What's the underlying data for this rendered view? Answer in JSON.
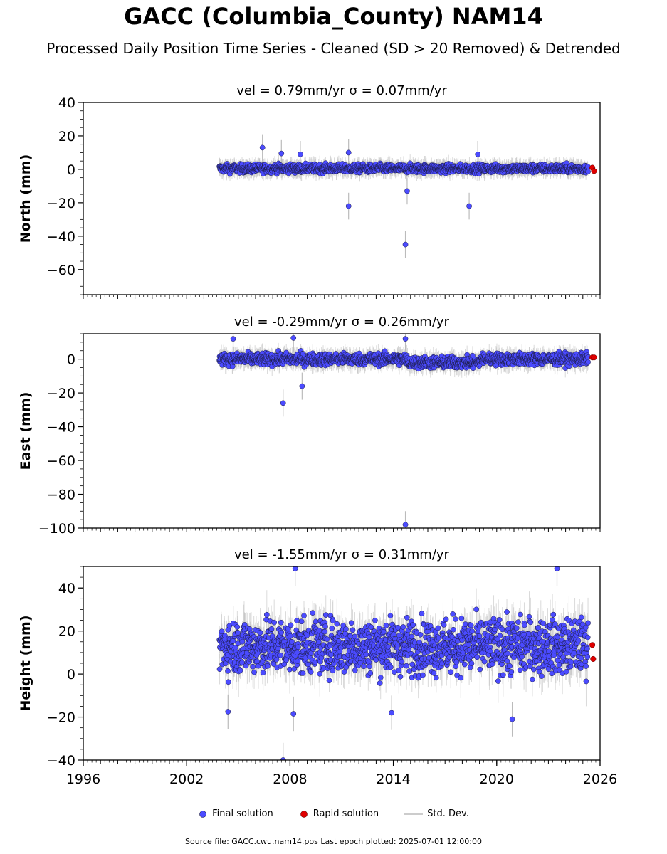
{
  "title": "GACC (Columbia_County) NAM14",
  "subtitle": "Processed Daily Position Time Series - Cleaned (SD > 20 Removed) & Detrended",
  "legend": {
    "final": "Final solution",
    "rapid": "Rapid solution",
    "std": "Std. Dev."
  },
  "source": "Source file: GACC.cwu.nam14.pos  Last epoch plotted: 2025-07-01 12:00:00",
  "colors": {
    "final": "#4b4bff",
    "rapid": "#e00000",
    "std": "#bbbbbb",
    "edge": "#1a1a40"
  },
  "chart_data": [
    {
      "type": "scatter",
      "panel": "north",
      "title": "vel = 0.79mm/yr   σ = 0.07mm/yr",
      "ylabel": "North (mm)",
      "xlim": [
        1996,
        2026
      ],
      "ylim": [
        -75,
        40
      ],
      "yticks": [
        40,
        20,
        0,
        -20,
        -40,
        -60
      ],
      "xticks": [],
      "data_start": 2003.9,
      "data_end": 2025.3,
      "baseline": 0.5,
      "spread": 1.8,
      "outliers": [
        [
          2006.4,
          13
        ],
        [
          2007.5,
          9.5
        ],
        [
          2008.6,
          9
        ],
        [
          2011.4,
          10
        ],
        [
          2011.4,
          -22
        ],
        [
          2014.7,
          -45
        ],
        [
          2014.8,
          -13
        ],
        [
          2018.4,
          -22
        ],
        [
          2018.9,
          9
        ]
      ],
      "rapid": [
        [
          2025.55,
          1
        ],
        [
          2025.65,
          -1
        ]
      ],
      "grid": false,
      "legend_position": "bottom-center"
    },
    {
      "type": "scatter",
      "panel": "east",
      "title": "vel = -0.29mm/yr   σ = 0.26mm/yr",
      "ylabel": "East (mm)",
      "xlim": [
        1996,
        2026
      ],
      "ylim": [
        -100,
        15
      ],
      "yticks": [
        0,
        -20,
        -40,
        -60,
        -80,
        -100
      ],
      "xticks": [],
      "data_start": 2003.9,
      "data_end": 2025.3,
      "baseline": 0,
      "spread": 2.5,
      "outliers": [
        [
          2004.7,
          12
        ],
        [
          2007.6,
          -26
        ],
        [
          2008.2,
          12.5
        ],
        [
          2008.7,
          -16
        ],
        [
          2014.7,
          12
        ],
        [
          2014.7,
          -98
        ]
      ],
      "rapid": [
        [
          2025.55,
          1
        ],
        [
          2025.65,
          1
        ]
      ],
      "grid": false
    },
    {
      "type": "scatter",
      "panel": "height",
      "title": "vel = -1.55mm/yr   σ = 0.31mm/yr",
      "ylabel": "Height (mm)",
      "xlim": [
        1996,
        2026
      ],
      "ylim": [
        -40,
        50
      ],
      "yticks": [
        40,
        20,
        0,
        -20,
        -40
      ],
      "xticks": [
        1996,
        2002,
        2008,
        2014,
        2020,
        2026
      ],
      "data_start": 2003.9,
      "data_end": 2025.3,
      "baseline": 13,
      "spread": 9,
      "outliers": [
        [
          2004.4,
          -17.5
        ],
        [
          2007.6,
          -40
        ],
        [
          2008.2,
          -18.5
        ],
        [
          2008.3,
          49
        ],
        [
          2013.9,
          -18
        ],
        [
          2020.9,
          -21
        ],
        [
          2023.5,
          49
        ]
      ],
      "rapid": [
        [
          2025.55,
          13.5
        ],
        [
          2025.6,
          7
        ]
      ],
      "grid": false
    }
  ]
}
